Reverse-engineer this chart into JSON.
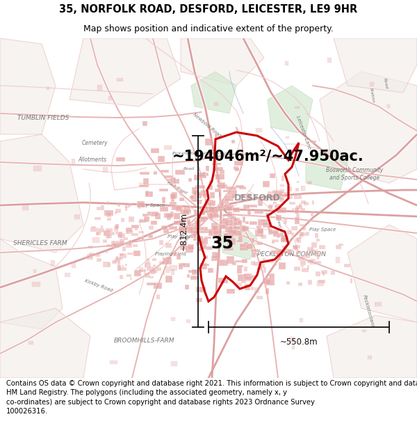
{
  "title_line1": "35, NORFOLK ROAD, DESFORD, LEICESTER, LE9 9HR",
  "title_line2": "Map shows position and indicative extent of the property.",
  "footer_text": "Contains OS data © Crown copyright and database right 2021. This information is subject to Crown copyright and database rights 2023 and is reproduced with the permission of\nHM Land Registry. The polygons (including the associated geometry, namely x, y\nco-ordinates) are subject to Crown copyright and database rights 2023 Ordnance Survey\n100026316.",
  "area_text": "~194046m²/~47.950ac.",
  "label_35": "35",
  "dim_horizontal": "~550.8m",
  "dim_vertical": "~812.4m",
  "map_bg": "#f8f4f2",
  "road_color_main": "#e8b4b4",
  "road_color_minor": "#f0c8c8",
  "road_color_thick": "#dda0a0",
  "highlight_color": "#cc0000",
  "building_color": "#e8a8a8",
  "green_color": "#d4e8d0",
  "green_edge": "#b8d4b0",
  "blue_color": "#c8d8f0",
  "label_color": "#888888",
  "dim_color": "#111111",
  "title_fontsize": 10.5,
  "subtitle_fontsize": 9,
  "footer_fontsize": 7.2,
  "area_fontsize": 16,
  "label35_fontsize": 18,
  "map_label_fontsize": 6,
  "title_bg": "#ffffff",
  "footer_bg": "#ffffff"
}
